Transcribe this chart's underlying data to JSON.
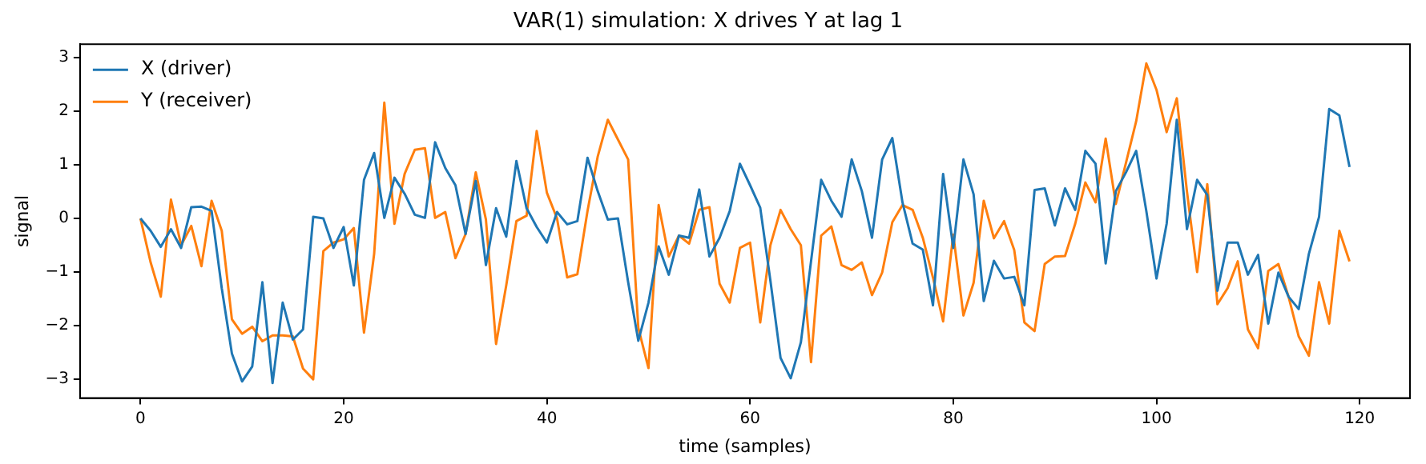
{
  "chart_data": {
    "type": "line",
    "title": "VAR(1) simulation: X drives Y at lag 1",
    "xlabel": "time (samples)",
    "ylabel": "signal",
    "x": [
      0,
      1,
      2,
      3,
      4,
      5,
      6,
      7,
      8,
      9,
      10,
      11,
      12,
      13,
      14,
      15,
      16,
      17,
      18,
      19,
      20,
      21,
      22,
      23,
      24,
      25,
      26,
      27,
      28,
      29,
      30,
      31,
      32,
      33,
      34,
      35,
      36,
      37,
      38,
      39,
      40,
      41,
      42,
      43,
      44,
      45,
      46,
      47,
      48,
      49,
      50,
      51,
      52,
      53,
      54,
      55,
      56,
      57,
      58,
      59,
      60,
      61,
      62,
      63,
      64,
      65,
      66,
      67,
      68,
      69,
      70,
      71,
      72,
      73,
      74,
      75,
      76,
      77,
      78,
      79,
      80,
      81,
      82,
      83,
      84,
      85,
      86,
      87,
      88,
      89,
      90,
      91,
      92,
      93,
      94,
      95,
      96,
      97,
      98,
      99,
      100,
      101,
      102,
      103,
      104,
      105,
      106,
      107,
      108,
      109,
      110,
      111,
      112,
      113,
      114,
      115,
      116,
      117,
      118,
      119
    ],
    "series": [
      {
        "name": "X (driver)",
        "color": "#1f77b4",
        "values": [
          0.0,
          -0.23,
          -0.53,
          -0.2,
          -0.55,
          0.21,
          0.22,
          0.14,
          -1.3,
          -2.52,
          -3.04,
          -2.76,
          -1.19,
          -3.07,
          -1.57,
          -2.26,
          -2.07,
          0.03,
          0.0,
          -0.55,
          -0.16,
          -1.25,
          0.72,
          1.22,
          0.01,
          0.76,
          0.46,
          0.07,
          0.01,
          1.42,
          0.94,
          0.62,
          -0.29,
          0.7,
          -0.87,
          0.19,
          -0.34,
          1.07,
          0.19,
          -0.16,
          -0.45,
          0.12,
          -0.11,
          -0.05,
          1.13,
          0.51,
          -0.02,
          0.0,
          -1.19,
          -2.28,
          -1.57,
          -0.52,
          -1.05,
          -0.32,
          -0.36,
          0.54,
          -0.71,
          -0.36,
          0.14,
          1.02,
          0.62,
          0.2,
          -1.16,
          -2.6,
          -2.98,
          -2.31,
          -0.8,
          0.72,
          0.33,
          0.03,
          1.1,
          0.51,
          -0.36,
          1.1,
          1.5,
          0.3,
          -0.47,
          -0.58,
          -1.62,
          0.83,
          -0.55,
          1.1,
          0.45,
          -1.54,
          -0.79,
          -1.12,
          -1.09,
          -1.62,
          0.53,
          0.56,
          -0.13,
          0.56,
          0.16,
          1.26,
          1.02,
          -0.84,
          0.51,
          0.86,
          1.26,
          0.14,
          -1.12,
          -0.1,
          1.84,
          -0.2,
          0.72,
          0.44,
          -1.35,
          -0.45,
          -0.45,
          -1.05,
          -0.68,
          -1.96,
          -1.01,
          -1.46,
          -1.69,
          -0.66,
          0.03,
          2.04,
          1.92,
          0.96
        ]
      },
      {
        "name": "Y (receiver)",
        "color": "#ff7f0e",
        "values": [
          0.0,
          -0.82,
          -1.46,
          0.35,
          -0.5,
          -0.14,
          -0.89,
          0.33,
          -0.23,
          -1.88,
          -2.15,
          -2.02,
          -2.29,
          -2.18,
          -2.18,
          -2.2,
          -2.8,
          -3.0,
          -0.61,
          -0.45,
          -0.39,
          -0.18,
          -2.13,
          -0.66,
          2.16,
          -0.1,
          0.83,
          1.28,
          1.31,
          0.01,
          0.12,
          -0.74,
          -0.29,
          0.86,
          -0.02,
          -2.34,
          -1.25,
          -0.05,
          0.05,
          1.63,
          0.48,
          0.0,
          -1.1,
          -1.04,
          0.14,
          1.15,
          1.84,
          1.47,
          1.1,
          -2.04,
          -2.79,
          0.25,
          -0.71,
          -0.32,
          -0.47,
          0.16,
          0.21,
          -1.22,
          -1.57,
          -0.55,
          -0.45,
          -1.94,
          -0.5,
          0.16,
          -0.2,
          -0.5,
          -2.68,
          -0.32,
          -0.15,
          -0.87,
          -0.96,
          -0.82,
          -1.43,
          -1.01,
          -0.07,
          0.25,
          0.16,
          -0.36,
          -1.1,
          -1.92,
          -0.3,
          -1.81,
          -1.2,
          0.33,
          -0.37,
          -0.05,
          -0.59,
          -1.94,
          -2.1,
          -0.85,
          -0.71,
          -0.7,
          -0.1,
          0.67,
          0.3,
          1.49,
          0.27,
          1.04,
          1.81,
          2.89,
          2.4,
          1.61,
          2.24,
          0.5,
          -1.0,
          0.64,
          -1.6,
          -1.3,
          -0.8,
          -2.07,
          -2.42,
          -0.98,
          -0.85,
          -1.46,
          -2.2,
          -2.56,
          -1.19,
          -1.96,
          -0.23,
          -0.8
        ]
      }
    ],
    "xlim": [
      -5.95,
      124.95
    ],
    "xticks": [
      0,
      20,
      40,
      60,
      80,
      100,
      120
    ],
    "ylim": [
      -3.35,
      3.25
    ],
    "yticks": [
      -3,
      -2,
      -1,
      0,
      1,
      2,
      3
    ],
    "grid": false,
    "legend": "top left",
    "marker": "none",
    "line_style": "solid"
  }
}
